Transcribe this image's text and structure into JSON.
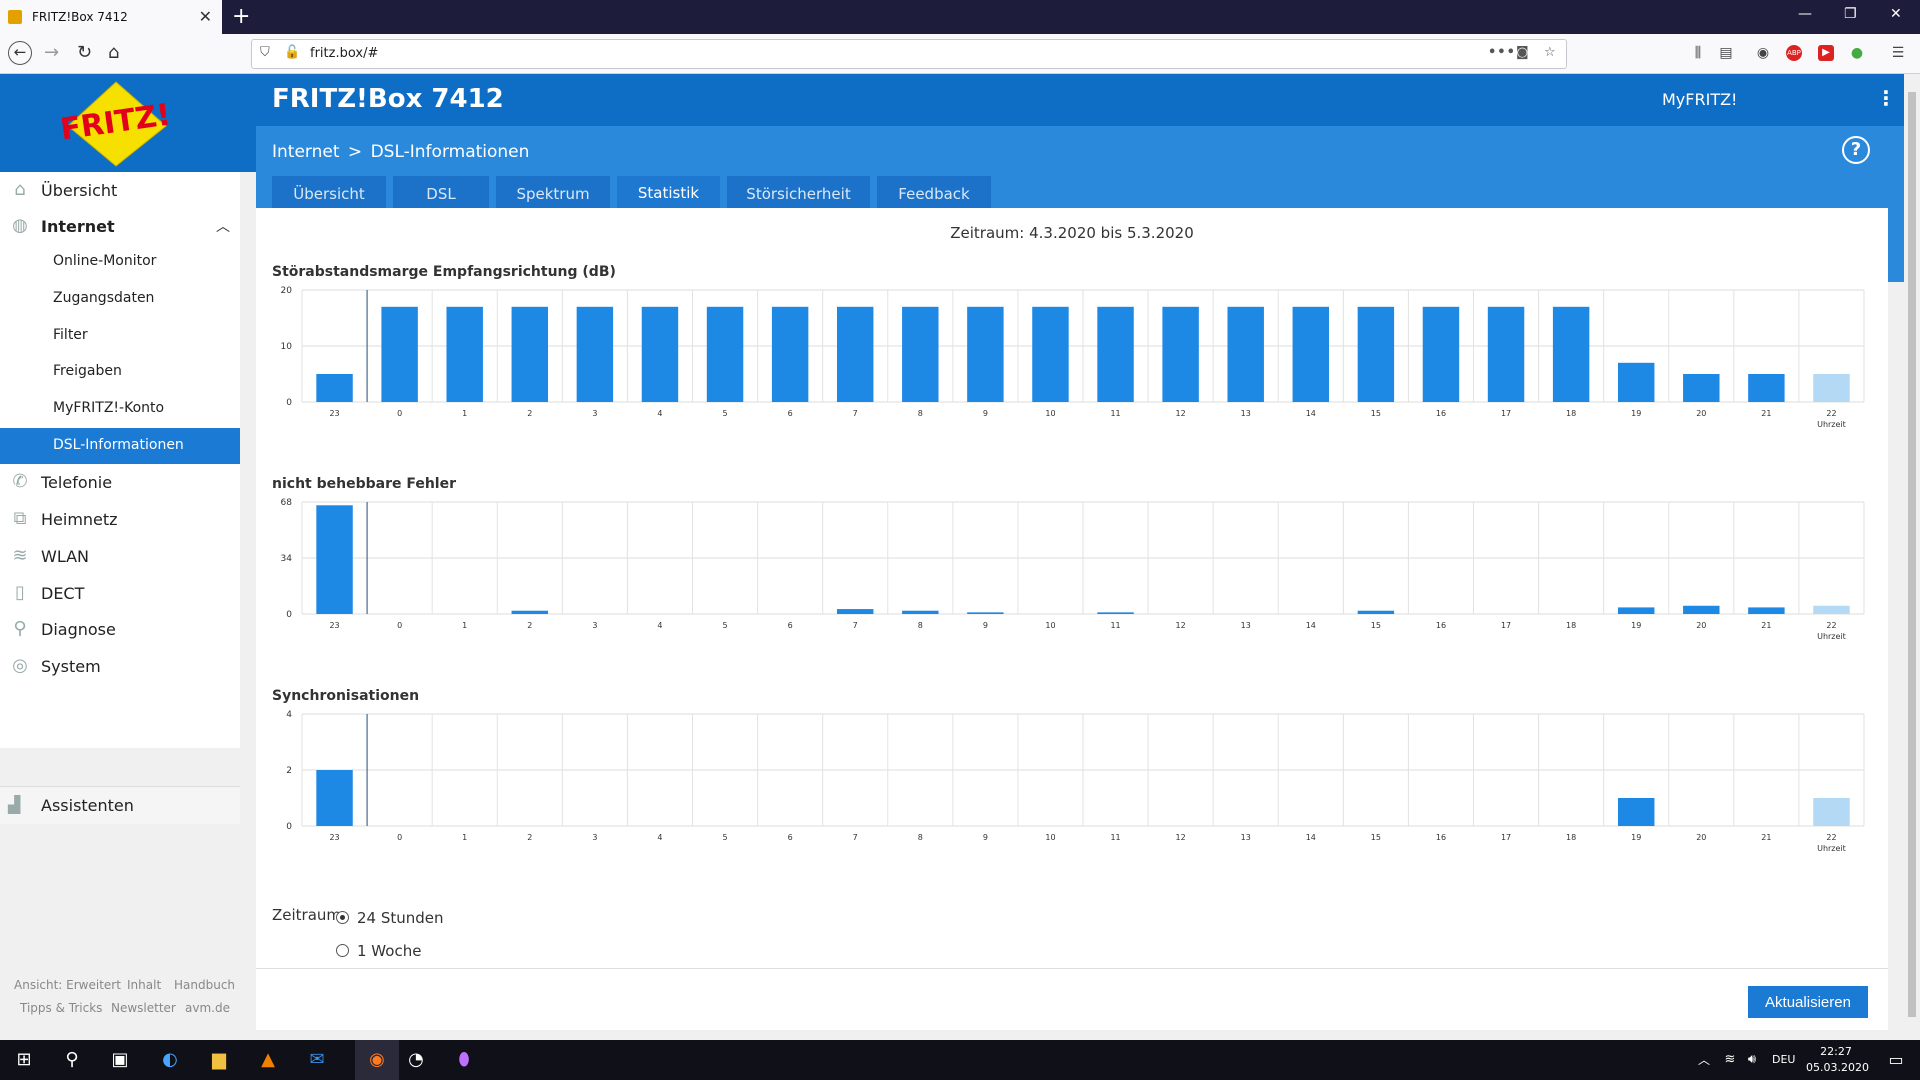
{
  "browser": {
    "tab_title": "FRITZ!Box 7412",
    "url": "fritz.box/#",
    "more_label": "•••"
  },
  "header": {
    "logo_text": "FRITZ!",
    "box_title": "FRITZ!Box 7412",
    "myfritz": "MyFRITZ!"
  },
  "breadcrumb": {
    "parent": "Internet",
    "separator": ">",
    "current": "DSL-Informationen"
  },
  "tabs": [
    {
      "label": "Übersicht",
      "active": false
    },
    {
      "label": "DSL",
      "active": false
    },
    {
      "label": "Spektrum",
      "active": false
    },
    {
      "label": "Statistik",
      "active": true
    },
    {
      "label": "Störsicherheit",
      "active": false
    },
    {
      "label": "Feedback",
      "active": false
    }
  ],
  "sidebar": {
    "items": [
      {
        "label": "Übersicht",
        "icon": "home-icon"
      },
      {
        "label": "Internet",
        "icon": "globe-icon"
      },
      {
        "label": "Telefonie",
        "icon": "phone-icon"
      },
      {
        "label": "Heimnetz",
        "icon": "network-icon"
      },
      {
        "label": "WLAN",
        "icon": "wifi-icon"
      },
      {
        "label": "DECT",
        "icon": "dect-icon"
      },
      {
        "label": "Diagnose",
        "icon": "diagnose-icon"
      },
      {
        "label": "System",
        "icon": "system-icon"
      }
    ],
    "internet_sub": [
      {
        "label": "Online-Monitor"
      },
      {
        "label": "Zugangsdaten"
      },
      {
        "label": "Filter"
      },
      {
        "label": "Freigaben"
      },
      {
        "label": "MyFRITZ!-Konto"
      },
      {
        "label": "DSL-Informationen",
        "active": true
      }
    ],
    "assistant": "Assistenten",
    "footer_links_row1": [
      "Ansicht: Erweitert",
      "Inhalt",
      "Handbuch"
    ],
    "footer_links_row2": [
      "Tipps & Tricks",
      "Newsletter",
      "avm.de"
    ]
  },
  "content": {
    "period_heading": "Zeitraum: 4.3.2020 bis 5.3.2020",
    "period_label": "Zeitraum",
    "options": [
      {
        "label": "24 Stunden",
        "selected": true
      },
      {
        "label": "1 Woche",
        "selected": false
      }
    ],
    "update_button": "Aktualisieren"
  },
  "colors": {
    "header_blue": "#0e6dc4",
    "subheader_blue": "#2a89db",
    "bar": "#1e88e5",
    "bar_current": "#b3d9f5",
    "tab_underline": "#f5e000"
  },
  "chart_data": [
    {
      "type": "bar",
      "title": "Störabstandsmarge Empfangsrichtung (dB)",
      "xlabel": "Uhrzeit",
      "categories": [
        "23",
        "0",
        "1",
        "2",
        "3",
        "4",
        "5",
        "6",
        "7",
        "8",
        "9",
        "10",
        "11",
        "12",
        "13",
        "14",
        "15",
        "16",
        "17",
        "18",
        "19",
        "20",
        "21",
        "22"
      ],
      "values": [
        5,
        17,
        17,
        17,
        17,
        17,
        17,
        17,
        17,
        17,
        17,
        17,
        17,
        17,
        17,
        17,
        17,
        17,
        17,
        17,
        7,
        5,
        5,
        5
      ],
      "yticks": [
        0,
        10,
        20
      ],
      "ylim": [
        0,
        20
      ],
      "day_boundary_after": "23",
      "current_hour": "22"
    },
    {
      "type": "bar",
      "title": "nicht behebbare Fehler",
      "xlabel": "Uhrzeit",
      "categories": [
        "23",
        "0",
        "1",
        "2",
        "3",
        "4",
        "5",
        "6",
        "7",
        "8",
        "9",
        "10",
        "11",
        "12",
        "13",
        "14",
        "15",
        "16",
        "17",
        "18",
        "19",
        "20",
        "21",
        "22"
      ],
      "values": [
        66,
        0,
        0,
        2,
        0,
        0,
        0,
        0,
        3,
        2,
        1,
        0,
        1,
        0,
        0,
        0,
        2,
        0,
        0,
        0,
        4,
        5,
        4,
        5
      ],
      "yticks": [
        0,
        34,
        68
      ],
      "ylim": [
        0,
        68
      ],
      "day_boundary_after": "23",
      "current_hour": "22"
    },
    {
      "type": "bar",
      "title": "Synchronisationen",
      "xlabel": "Uhrzeit",
      "categories": [
        "23",
        "0",
        "1",
        "2",
        "3",
        "4",
        "5",
        "6",
        "7",
        "8",
        "9",
        "10",
        "11",
        "12",
        "13",
        "14",
        "15",
        "16",
        "17",
        "18",
        "19",
        "20",
        "21",
        "22"
      ],
      "values": [
        2,
        0,
        0,
        0,
        0,
        0,
        0,
        0,
        0,
        0,
        0,
        0,
        0,
        0,
        0,
        0,
        0,
        0,
        0,
        0,
        1,
        0,
        0,
        1
      ],
      "yticks": [
        0,
        2,
        4
      ],
      "ylim": [
        0,
        4
      ],
      "day_boundary_after": "23",
      "current_hour": "22"
    }
  ],
  "taskbar": {
    "language": "DEU",
    "time": "22:27",
    "date": "05.03.2020"
  }
}
